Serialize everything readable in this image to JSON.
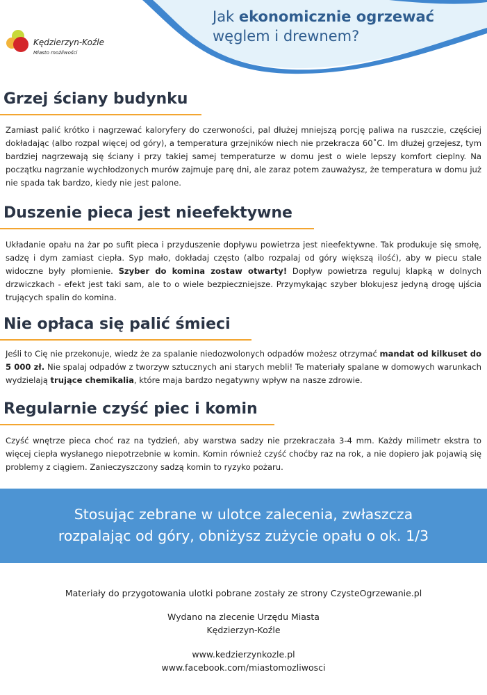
{
  "header": {
    "logo_name": "Kędzierzyn-Koźle",
    "logo_tagline": "Miasto możliwości",
    "title_prefix": "Jak ",
    "title_bold": "ekonomicznie ogrzewać",
    "title_line2": "węglem i drewnem?"
  },
  "sections": [
    {
      "heading": "Grzej ściany budynku",
      "body": [
        {
          "text": "Zamiast palić krótko i nagrzewać kaloryfery do czerwoności, pal dłużej mniejszą porcję paliwa na ruszczie, częściej dokładając (albo rozpal więcej od góry), a temperatura grzejników niech nie przekracza 60˚C. Im dłużej grzejesz, tym bardziej nagrzewają się ściany i przy takiej samej temperaturze w domu jest o wiele lepszy komfort cieplny. Na początku nagrzanie wychłodzonych murów zajmuje parę dni, ale zaraz potem zauważysz, że temperatura w domu już nie spada tak bardzo, kiedy nie jest palone."
        }
      ]
    },
    {
      "heading": "Duszenie pieca jest nieefektywne",
      "body": [
        {
          "text": "Układanie opału na żar po sufit pieca i przyduszenie dopływu powietrza jest nieefektywne. Tak produkuje się smołę, sadzę i dym zamiast ciepła. Syp mało, dokładaj często (albo rozpalaj od góry większą ilość), aby w piecu stale widoczne były płomienie. "
        },
        {
          "text": "Szyber do komina zostaw otwarty!"
        },
        {
          "text": " Dopływ powietrza reguluj klapką w dolnych drzwiczkach - efekt jest taki sam, ale to o wiele bezpieczniejsze. Przymykając szyber blokujesz jedyną drogę ujścia trujących spalin do komina."
        }
      ]
    },
    {
      "heading": "Nie opłaca się palić śmieci",
      "body": [
        {
          "text": "Jeśli to Cię nie przekonuje, wiedz że za spalanie niedozwolonych odpadów możesz otrzymać "
        },
        {
          "text": "mandat od kilkuset do 5 000 zł."
        },
        {
          "text": " Nie spalaj odpadów z tworzyw sztucznych ani starych mebli! Te materiały spalane w domowych warunkach wydzielają "
        },
        {
          "text": "trujące chemikalia"
        },
        {
          "text": ", które maja bardzo negatywny wpływ na nasze zdrowie."
        }
      ]
    },
    {
      "heading": "Regularnie czyść piec i komin",
      "body": [
        {
          "text": "Czyść wnętrze pieca choć raz na tydzień, aby warstwa sadzy nie przekraczała 3-4 mm. Każdy milimetr ekstra to więcej ciepła wysłanego niepotrzebnie w komin. Komin również czyść choćby raz na rok, a nie dopiero jak pojawią się problemy z ciągiem. Zanieczyszczony sadzą komin to ryzyko pożaru."
        }
      ]
    }
  ],
  "banner": {
    "line1": "Stosując zebrane w ulotce zalecenia, zwłaszcza",
    "line2": "rozpalając od góry, obniżysz zużycie opału o ok. 1/3"
  },
  "footer": {
    "source": "Materiały do przygotowania ulotki pobrane zostały ze strony CzysteOgrzewanie.pl",
    "issued1": "Wydano na zlecenie Urzędu Miasta",
    "issued2": "Kędzierzyn-Koźle",
    "website": "www.kedzierzynkozle.pl",
    "facebook": "www.facebook.com/miastomozliwosci"
  },
  "colors": {
    "accent_blue": "#4d94d3",
    "heading": "#2a3445",
    "underline": "#f3a530",
    "title": "#2f5d8f"
  }
}
